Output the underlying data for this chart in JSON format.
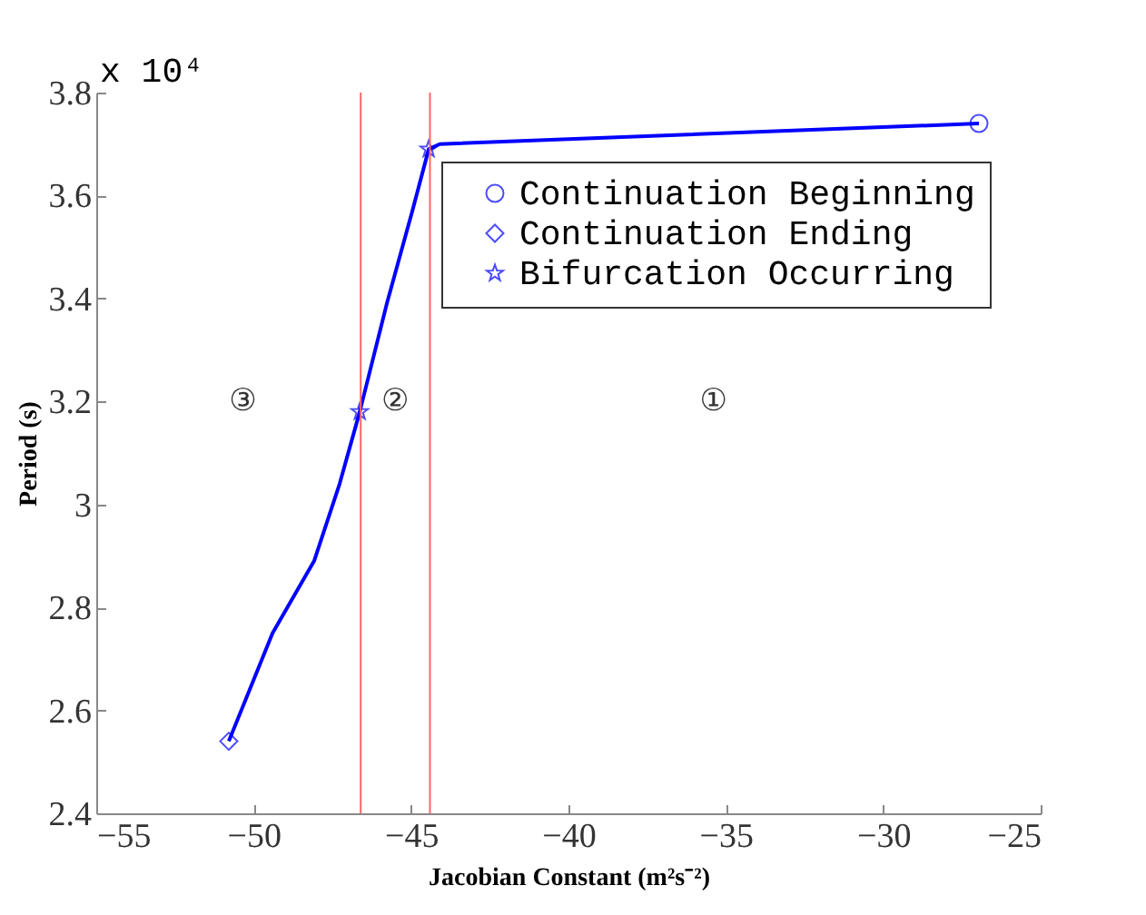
{
  "chart_data": {
    "type": "line",
    "xlabel": "Jacobian Constant (m²s⁻²)",
    "ylabel": "Period (s)",
    "xlim": [
      -55,
      -25
    ],
    "xticks": [
      -55,
      -50,
      -45,
      -40,
      -35,
      -30,
      -25
    ],
    "ylim": [
      2.4,
      3.8
    ],
    "yticks": [
      2.4,
      2.6,
      2.8,
      3,
      3.2,
      3.4,
      3.6,
      3.8
    ],
    "grid": false,
    "legend": "top right",
    "series": [
      {
        "type": "line",
        "color": "#0000ff",
        "marker": "none",
        "line_style": "solid",
        "x": [
          -50.79,
          -49.4,
          -48.08,
          -47.27,
          -46.63,
          -45.77,
          -44.96,
          -44.44,
          -44.09,
          -26.96
        ],
        "values": [
          2.54,
          2.75,
          2.89,
          3.04,
          3.18,
          3.39,
          3.57,
          3.69,
          3.7,
          3.74
        ]
      },
      {
        "type": "scatter",
        "name": "Continuation Beginning",
        "color": "#0000ff",
        "marker": "circle",
        "x": [
          -26.96
        ],
        "values": [
          3.74
        ]
      },
      {
        "type": "scatter",
        "name": "Continuation Ending",
        "color": "#0000ff",
        "marker": "diamond",
        "x": [
          -50.79
        ],
        "values": [
          2.54
        ]
      },
      {
        "type": "scatter",
        "name": "Bifurcation Occurring",
        "color": "#0000ff",
        "marker": "star",
        "x": [
          -46.63,
          -44.44
        ],
        "values": [
          3.18,
          3.69
        ]
      }
    ],
    "ref_lines": [
      {
        "axis": "x",
        "value": -46.6,
        "color": "#ff6666"
      },
      {
        "axis": "x",
        "value": -44.4,
        "color": "#ff6666"
      }
    ],
    "annotations": [
      "x 10⁴",
      "③",
      "②",
      "①"
    ]
  }
}
